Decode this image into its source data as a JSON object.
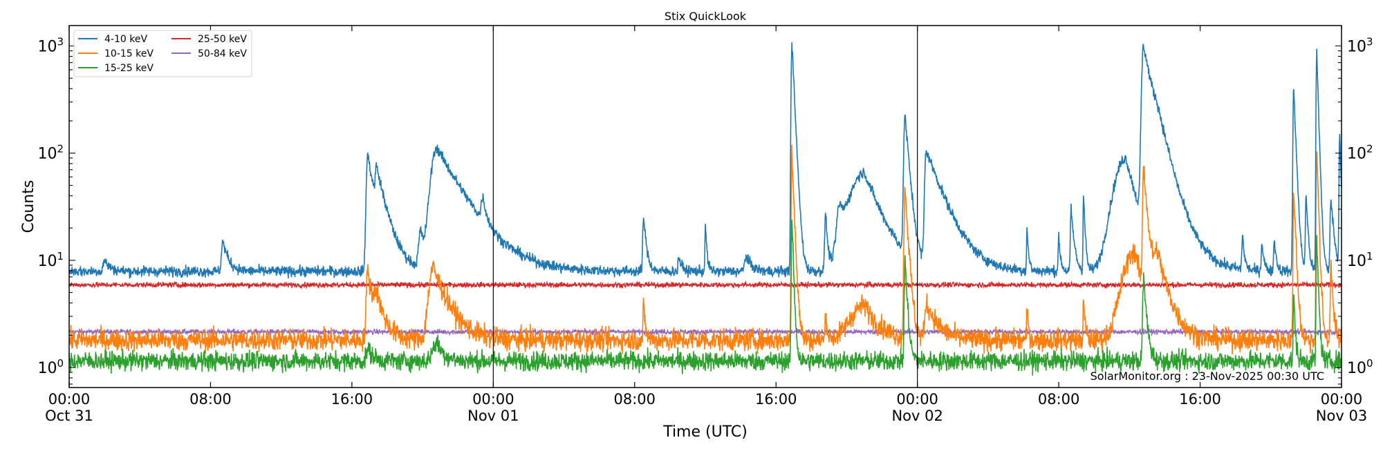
{
  "chart_data": {
    "type": "line",
    "title": "Stix QuickLook",
    "xlabel": "Time (UTC)",
    "ylabel": "Counts",
    "yscale": "log",
    "ylim": [
      0.65,
      1550
    ],
    "xlim_hours": [
      0,
      72
    ],
    "x_unit": "hours since 2025-10-31 00:00 UTC",
    "grid": false,
    "legend_placement": "top-left",
    "x_ticks": [
      {
        "hour": 0,
        "label": "00:00",
        "sublabel": "Oct 31"
      },
      {
        "hour": 8,
        "label": "08:00",
        "sublabel": ""
      },
      {
        "hour": 16,
        "label": "16:00",
        "sublabel": ""
      },
      {
        "hour": 24,
        "label": "00:00",
        "sublabel": "Nov 01"
      },
      {
        "hour": 32,
        "label": "08:00",
        "sublabel": ""
      },
      {
        "hour": 40,
        "label": "16:00",
        "sublabel": ""
      },
      {
        "hour": 48,
        "label": "00:00",
        "sublabel": "Nov 02"
      },
      {
        "hour": 56,
        "label": "08:00",
        "sublabel": ""
      },
      {
        "hour": 64,
        "label": "16:00",
        "sublabel": ""
      },
      {
        "hour": 72,
        "label": "00:00",
        "sublabel": "Nov 03"
      }
    ],
    "y_ticks": [
      {
        "value": 1,
        "base": "10",
        "exp": "0"
      },
      {
        "value": 10,
        "base": "10",
        "exp": "1"
      },
      {
        "value": 100,
        "base": "10",
        "exp": "2"
      },
      {
        "value": 1000,
        "base": "10",
        "exp": "3"
      }
    ],
    "day_boundaries_hours": [
      24,
      48
    ],
    "annotation": "SolarMonitor.org : 23-Nov-2025 00:30 UTC",
    "series": [
      {
        "name": "4-10 keV",
        "color": "#1f77b4",
        "baseline": 7.9,
        "peaks": [
          [
            2,
            10,
            0.1,
            0.3
          ],
          [
            8.7,
            15,
            0.1,
            0.3
          ],
          [
            16.9,
            97,
            0.1,
            0.4
          ],
          [
            17.4,
            50,
            0.1,
            0.6
          ],
          [
            19.9,
            18,
            0.15,
            0.2
          ],
          [
            20.8,
            112,
            0.4,
            1.4
          ],
          [
            23.4,
            24,
            0.1,
            0.2
          ],
          [
            32.5,
            26,
            0.05,
            0.15
          ],
          [
            34.5,
            11,
            0.05,
            0.15
          ],
          [
            36,
            22,
            0.03,
            0.08
          ],
          [
            38.3,
            11,
            0.1,
            0.3
          ],
          [
            40.9,
            1080,
            0.05,
            0.12
          ],
          [
            42.8,
            29,
            0.05,
            0.1
          ],
          [
            43.6,
            26,
            0.2,
            0.3
          ],
          [
            45,
            66,
            1,
            0.9
          ],
          [
            47.3,
            225,
            0.08,
            0.2
          ],
          [
            48.5,
            105,
            0.1,
            0.9
          ],
          [
            54.2,
            20,
            0.03,
            0.08
          ],
          [
            56,
            16,
            0.05,
            0.1
          ],
          [
            56.7,
            30,
            0.05,
            0.15
          ],
          [
            57.4,
            43,
            0.03,
            0.08
          ],
          [
            59.8,
            90,
            0.8,
            0.6
          ],
          [
            60.8,
            1000,
            0.12,
            0.5
          ],
          [
            61.6,
            80,
            0.3,
            0.9
          ],
          [
            66.4,
            17,
            0.05,
            0.1
          ],
          [
            67.5,
            15,
            0.05,
            0.1
          ],
          [
            68.2,
            16,
            0.05,
            0.1
          ],
          [
            69.3,
            410,
            0.05,
            0.1
          ],
          [
            70,
            40,
            0.05,
            0.1
          ],
          [
            70.6,
            870,
            0.04,
            0.08
          ],
          [
            71.4,
            40,
            0.05,
            0.15
          ],
          [
            71.9,
            150,
            0.04,
            0.08
          ]
        ]
      },
      {
        "name": "10-15 keV",
        "color": "#ff7f0e",
        "baseline": 1.8,
        "peaks": [
          [
            16.9,
            8,
            0.1,
            0.3
          ],
          [
            17.4,
            4,
            0.2,
            0.5
          ],
          [
            20.6,
            8.5,
            0.3,
            0.8
          ],
          [
            32.5,
            3.8,
            0.03,
            0.1
          ],
          [
            40.9,
            110,
            0.04,
            0.1
          ],
          [
            42.8,
            3.5,
            0.03,
            0.08
          ],
          [
            45,
            3.8,
            1,
            0.8
          ],
          [
            47.3,
            50,
            0.06,
            0.15
          ],
          [
            48.5,
            4,
            0.1,
            0.6
          ],
          [
            54.2,
            3.5,
            0.03,
            0.08
          ],
          [
            57.4,
            4.3,
            0.03,
            0.08
          ],
          [
            60.3,
            12,
            0.8,
            0.5
          ],
          [
            60.8,
            72,
            0.06,
            0.2
          ],
          [
            61.6,
            10,
            0.3,
            0.6
          ],
          [
            69.3,
            47,
            0.04,
            0.1
          ],
          [
            70.6,
            110,
            0.04,
            0.08
          ],
          [
            71.4,
            10,
            0.04,
            0.1
          ]
        ]
      },
      {
        "name": "15-25 keV",
        "color": "#2ca02c",
        "baseline": 1.15,
        "peaks": [
          [
            16.9,
            1.5,
            0.1,
            0.3
          ],
          [
            20.8,
            1.7,
            0.3,
            0.4
          ],
          [
            40.9,
            25,
            0.04,
            0.08
          ],
          [
            47.3,
            10,
            0.05,
            0.12
          ],
          [
            60.8,
            7,
            0.06,
            0.15
          ],
          [
            69.3,
            4.5,
            0.04,
            0.08
          ],
          [
            70.6,
            15,
            0.04,
            0.08
          ]
        ]
      },
      {
        "name": "25-50 keV",
        "color": "#d62728",
        "baseline": 5.9,
        "peaks": []
      },
      {
        "name": "50-84 keV",
        "color": "#9467bd",
        "baseline": 2.15,
        "peaks": []
      }
    ]
  }
}
